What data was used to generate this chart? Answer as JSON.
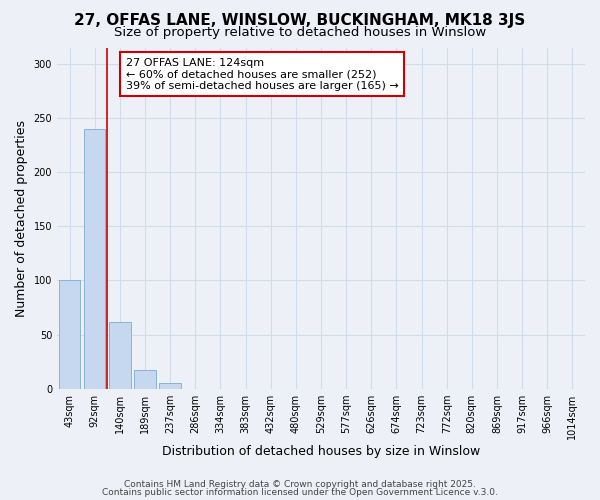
{
  "title1": "27, OFFAS LANE, WINSLOW, BUCKINGHAM, MK18 3JS",
  "title2": "Size of property relative to detached houses in Winslow",
  "xlabel": "Distribution of detached houses by size in Winslow",
  "ylabel": "Number of detached properties",
  "bar_values": [
    100,
    240,
    62,
    17,
    5,
    0,
    0,
    0,
    0,
    0,
    0,
    0,
    0,
    0,
    0,
    0,
    0,
    0,
    0,
    0,
    0
  ],
  "bin_labels": [
    "43sqm",
    "92sqm",
    "140sqm",
    "189sqm",
    "237sqm",
    "286sqm",
    "334sqm",
    "383sqm",
    "432sqm",
    "480sqm",
    "529sqm",
    "577sqm",
    "626sqm",
    "674sqm",
    "723sqm",
    "772sqm",
    "820sqm",
    "869sqm",
    "917sqm",
    "966sqm",
    "1014sqm"
  ],
  "bar_color": "#c5d8ef",
  "bar_edge_color": "#7aadd4",
  "grid_color": "#d0dcea",
  "bg_color": "#edf1f7",
  "vline_x": 1.5,
  "vline_color": "#cc0000",
  "annotation_text": "27 OFFAS LANE: 124sqm\n← 60% of detached houses are smaller (252)\n39% of semi-detached houses are larger (165) →",
  "annotation_box_color": "#ffffff",
  "annotation_border_color": "#cc0000",
  "ylim": [
    0,
    315
  ],
  "yticks": [
    0,
    50,
    100,
    150,
    200,
    250,
    300
  ],
  "footer1": "Contains HM Land Registry data © Crown copyright and database right 2025.",
  "footer2": "Contains public sector information licensed under the Open Government Licence v.3.0.",
  "title_fontsize": 11,
  "subtitle_fontsize": 9.5,
  "tick_fontsize": 7,
  "label_fontsize": 9,
  "footer_fontsize": 6.5
}
